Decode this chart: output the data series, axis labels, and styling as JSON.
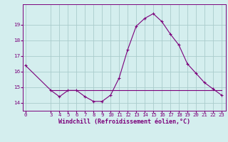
{
  "title": "Windchill (Refroidissement éolien,°C)",
  "bg_color": "#d4eeee",
  "grid_color": "#aacccc",
  "line_color": "#7b007b",
  "x_ticks": [
    0,
    3,
    4,
    5,
    6,
    7,
    8,
    9,
    10,
    11,
    12,
    13,
    14,
    15,
    16,
    17,
    18,
    19,
    20,
    21,
    22,
    23
  ],
  "x_labels": [
    "0",
    "3",
    "4",
    "5",
    "6",
    "7",
    "8",
    "9",
    "10",
    "11",
    "12",
    "13",
    "14",
    "15",
    "16",
    "17",
    "18",
    "19",
    "20",
    "21",
    "22",
    "23"
  ],
  "y_ticks": [
    14,
    15,
    16,
    17,
    18,
    19
  ],
  "ylim": [
    13.5,
    20.3
  ],
  "xlim": [
    -0.3,
    23.5
  ],
  "series1_x": [
    0,
    3,
    4,
    5,
    6,
    7,
    8,
    9,
    10,
    11,
    12,
    13,
    14,
    15,
    16,
    17,
    18,
    19,
    20,
    21,
    22,
    23
  ],
  "series1_y": [
    16.4,
    14.8,
    14.4,
    14.8,
    14.8,
    14.4,
    14.1,
    14.1,
    14.5,
    15.6,
    17.4,
    18.9,
    19.4,
    19.7,
    19.2,
    18.4,
    17.7,
    16.5,
    15.9,
    15.3,
    14.9,
    14.5
  ],
  "series2_x": [
    3,
    4,
    5,
    6,
    7,
    8,
    9,
    10,
    11,
    12,
    13,
    14,
    15,
    16,
    17,
    18,
    19,
    20,
    21,
    22,
    23
  ],
  "series2_y": [
    14.8,
    14.8,
    14.8,
    14.8,
    14.8,
    14.8,
    14.8,
    14.8,
    14.8,
    14.8,
    14.8,
    14.8,
    14.8,
    14.8,
    14.8,
    14.8,
    14.8,
    14.8,
    14.8,
    14.8,
    14.8
  ],
  "tick_fontsize": 5.2,
  "label_fontsize": 6.0
}
